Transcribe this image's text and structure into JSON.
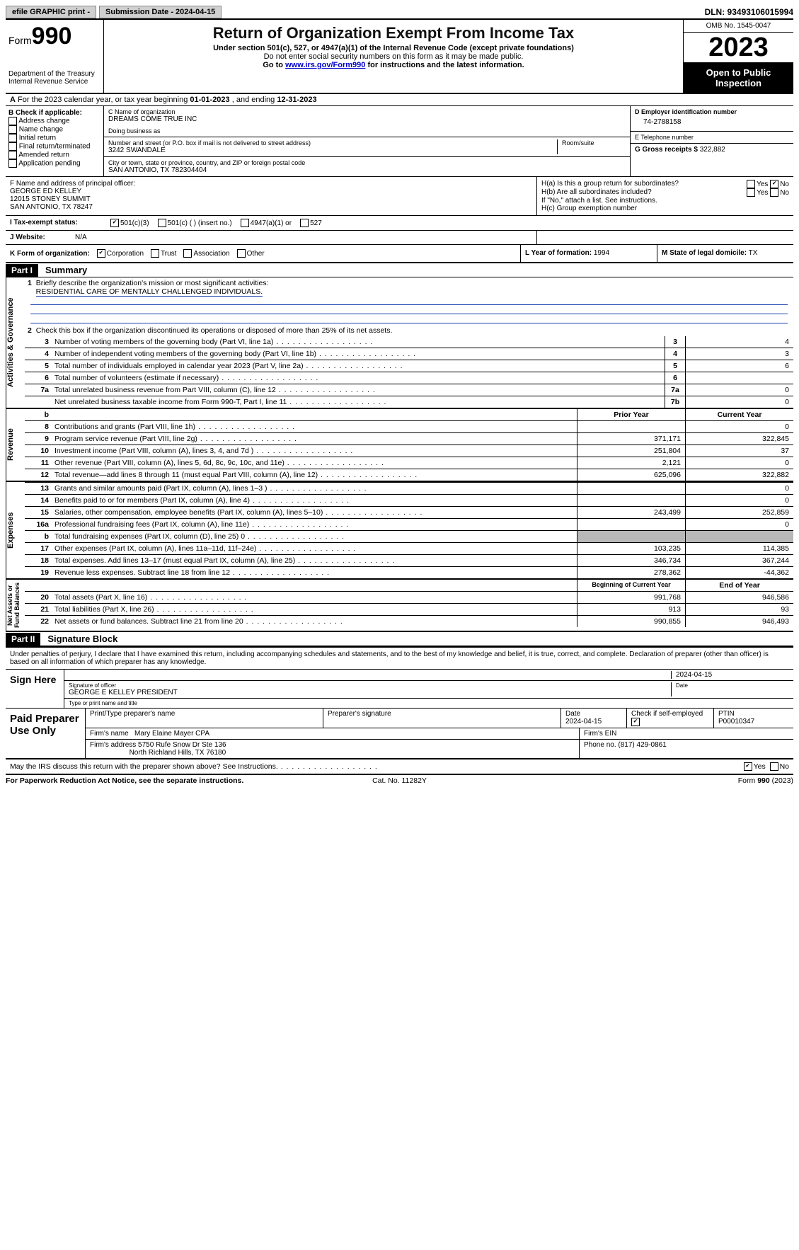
{
  "topbar": {
    "efile": "efile GRAPHIC print -",
    "submission": "Submission Date - 2024-04-15",
    "dln": "DLN: 93493106015994"
  },
  "header": {
    "form_prefix": "Form",
    "form_num": "990",
    "dept": "Department of the Treasury\nInternal Revenue Service",
    "title": "Return of Organization Exempt From Income Tax",
    "sub1": "Under section 501(c), 527, or 4947(a)(1) of the Internal Revenue Code (except private foundations)",
    "sub2": "Do not enter social security numbers on this form as it may be made public.",
    "sub3_pre": "Go to ",
    "sub3_link": "www.irs.gov/Form990",
    "sub3_post": " for instructions and the latest information.",
    "omb": "OMB No. 1545-0047",
    "year": "2023",
    "inspection": "Open to Public Inspection"
  },
  "line_a": {
    "text_pre": "For the 2023 calendar year, or tax year beginning ",
    "begin": "01-01-2023",
    "mid": " , and ending ",
    "end": "12-31-2023"
  },
  "box_b": {
    "label": "B Check if applicable:",
    "items": [
      "Address change",
      "Name change",
      "Initial return",
      "Final return/terminated",
      "Amended return",
      "Application pending"
    ]
  },
  "box_c": {
    "name_lbl": "C Name of organization",
    "name": "DREAMS COME TRUE INC",
    "dba_lbl": "Doing business as",
    "dba": "",
    "street_lbl": "Number and street (or P.O. box if mail is not delivered to street address)",
    "street": "3242 SWANDALE",
    "room_lbl": "Room/suite",
    "city_lbl": "City or town, state or province, country, and ZIP or foreign postal code",
    "city": "SAN ANTONIO, TX  782304404"
  },
  "box_d": {
    "lbl": "D Employer identification number",
    "val": "74-2788158"
  },
  "box_e": {
    "lbl": "E Telephone number",
    "val": ""
  },
  "box_g": {
    "lbl": "G Gross receipts $",
    "val": "322,882"
  },
  "box_f": {
    "lbl": "F  Name and address of principal officer:",
    "lines": [
      "GEORGE ED KELLEY",
      "12015 STONEY SUMMIT",
      "SAN ANTONIO, TX  78247"
    ]
  },
  "box_h": {
    "a_lbl": "H(a)  Is this a group return for subordinates?",
    "a_yes": "Yes",
    "a_no": "No",
    "a_checked": "no",
    "b_lbl": "H(b)  Are all subordinates included?",
    "b_yes": "Yes",
    "b_no": "No",
    "b_note": "If \"No,\" attach a list. See instructions.",
    "c_lbl": "H(c)  Group exemption number"
  },
  "row_i": {
    "lbl": "I   Tax-exempt status:",
    "opts": [
      "501(c)(3)",
      "501(c) (  ) (insert no.)",
      "4947(a)(1) or",
      "527"
    ],
    "checked": 0
  },
  "row_j": {
    "lbl": "J   Website:",
    "val": "N/A"
  },
  "row_k": {
    "lbl": "K Form of organization:",
    "opts": [
      "Corporation",
      "Trust",
      "Association",
      "Other"
    ],
    "checked": 0,
    "l_lbl": "L Year of formation:",
    "l_val": "1994",
    "m_lbl": "M State of legal domicile:",
    "m_val": "TX"
  },
  "part1": {
    "hdr": "Part I",
    "title": "Summary"
  },
  "summary": {
    "gov_tab": "Activities & Governance",
    "line1_lbl": "Briefly describe the organization's mission or most significant activities:",
    "line1_val": "RESIDENTIAL CARE OF MENTALLY CHALLENGED INDIVIDUALS.",
    "line2": "Check this box      if the organization discontinued its operations or disposed of more than 25% of its net assets.",
    "rows_gov": [
      {
        "n": "3",
        "d": "Number of voting members of the governing body (Part VI, line 1a)",
        "box": "3",
        "v": "4"
      },
      {
        "n": "4",
        "d": "Number of independent voting members of the governing body (Part VI, line 1b)",
        "box": "4",
        "v": "3"
      },
      {
        "n": "5",
        "d": "Total number of individuals employed in calendar year 2023 (Part V, line 2a)",
        "box": "5",
        "v": "6"
      },
      {
        "n": "6",
        "d": "Total number of volunteers (estimate if necessary)",
        "box": "6",
        "v": ""
      },
      {
        "n": "7a",
        "d": "Total unrelated business revenue from Part VIII, column (C), line 12",
        "box": "7a",
        "v": "0"
      },
      {
        "n": "",
        "d": "Net unrelated business taxable income from Form 990-T, Part I, line 11",
        "box": "7b",
        "v": "0"
      }
    ],
    "rev_tab": "Revenue",
    "hdr_prior": "Prior Year",
    "hdr_curr": "Current Year",
    "rows_rev": [
      {
        "n": "8",
        "d": "Contributions and grants (Part VIII, line 1h)",
        "p": "",
        "c": "0"
      },
      {
        "n": "9",
        "d": "Program service revenue (Part VIII, line 2g)",
        "p": "371,171",
        "c": "322,845"
      },
      {
        "n": "10",
        "d": "Investment income (Part VIII, column (A), lines 3, 4, and 7d )",
        "p": "251,804",
        "c": "37"
      },
      {
        "n": "11",
        "d": "Other revenue (Part VIII, column (A), lines 5, 6d, 8c, 9c, 10c, and 11e)",
        "p": "2,121",
        "c": "0"
      },
      {
        "n": "12",
        "d": "Total revenue—add lines 8 through 11 (must equal Part VIII, column (A), line 12)",
        "p": "625,096",
        "c": "322,882"
      }
    ],
    "exp_tab": "Expenses",
    "rows_exp": [
      {
        "n": "13",
        "d": "Grants and similar amounts paid (Part IX, column (A), lines 1–3 )",
        "p": "",
        "c": "0"
      },
      {
        "n": "14",
        "d": "Benefits paid to or for members (Part IX, column (A), line 4)",
        "p": "",
        "c": "0"
      },
      {
        "n": "15",
        "d": "Salaries, other compensation, employee benefits (Part IX, column (A), lines 5–10)",
        "p": "243,499",
        "c": "252,859"
      },
      {
        "n": "16a",
        "d": "Professional fundraising fees (Part IX, column (A), line 11e)",
        "p": "",
        "c": "0"
      },
      {
        "n": "b",
        "d": "Total fundraising expenses (Part IX, column (D), line 25) 0",
        "p": "grey",
        "c": "grey"
      },
      {
        "n": "17",
        "d": "Other expenses (Part IX, column (A), lines 11a–11d, 11f–24e)",
        "p": "103,235",
        "c": "114,385"
      },
      {
        "n": "18",
        "d": "Total expenses. Add lines 13–17 (must equal Part IX, column (A), line 25)",
        "p": "346,734",
        "c": "367,244"
      },
      {
        "n": "19",
        "d": "Revenue less expenses. Subtract line 18 from line 12",
        "p": "278,362",
        "c": "-44,362"
      }
    ],
    "net_tab": "Net Assets or\nFund Balances",
    "hdr_begin": "Beginning of Current Year",
    "hdr_end": "End of Year",
    "rows_net": [
      {
        "n": "20",
        "d": "Total assets (Part X, line 16)",
        "p": "991,768",
        "c": "946,586"
      },
      {
        "n": "21",
        "d": "Total liabilities (Part X, line 26)",
        "p": "913",
        "c": "93"
      },
      {
        "n": "22",
        "d": "Net assets or fund balances. Subtract line 21 from line 20",
        "p": "990,855",
        "c": "946,493"
      }
    ]
  },
  "part2": {
    "hdr": "Part II",
    "title": "Signature Block"
  },
  "sig": {
    "decl": "Under penalties of perjury, I declare that I have examined this return, including accompanying schedules and statements, and to the best of my knowledge and belief, it is true, correct, and complete. Declaration of preparer (other than officer) is based on all information of which preparer has any knowledge.",
    "sign_here": "Sign Here",
    "sig_officer_lbl": "Signature of officer",
    "sig_date_lbl": "Date",
    "sig_date": "2024-04-15",
    "officer": "GEORGE E KELLEY PRESIDENT",
    "type_lbl": "Type or print name and title",
    "paid": "Paid Preparer Use Only",
    "prep_name_lbl": "Print/Type preparer's name",
    "prep_sig_lbl": "Preparer's signature",
    "prep_date_lbl": "Date",
    "prep_date": "2024-04-15",
    "prep_self_lbl": "Check         if self-employed",
    "prep_self_checked": true,
    "ptin_lbl": "PTIN",
    "ptin": "P00010347",
    "firm_name_lbl": "Firm's name",
    "firm_name": "Mary Elaine Mayer CPA",
    "firm_ein_lbl": "Firm's EIN",
    "firm_addr_lbl": "Firm's address",
    "firm_addr1": "5750 Rufe Snow Dr Ste 136",
    "firm_addr2": "North Richland Hills, TX  76180",
    "firm_phone_lbl": "Phone no.",
    "firm_phone": "(817) 429-0861",
    "discuss": "May the IRS discuss this return with the preparer shown above? See Instructions.",
    "discuss_yes": "Yes",
    "discuss_no": "No",
    "discuss_checked": "yes"
  },
  "footer": {
    "l": "For Paperwork Reduction Act Notice, see the separate instructions.",
    "c": "Cat. No. 11282Y",
    "r": "Form 990 (2023)"
  }
}
